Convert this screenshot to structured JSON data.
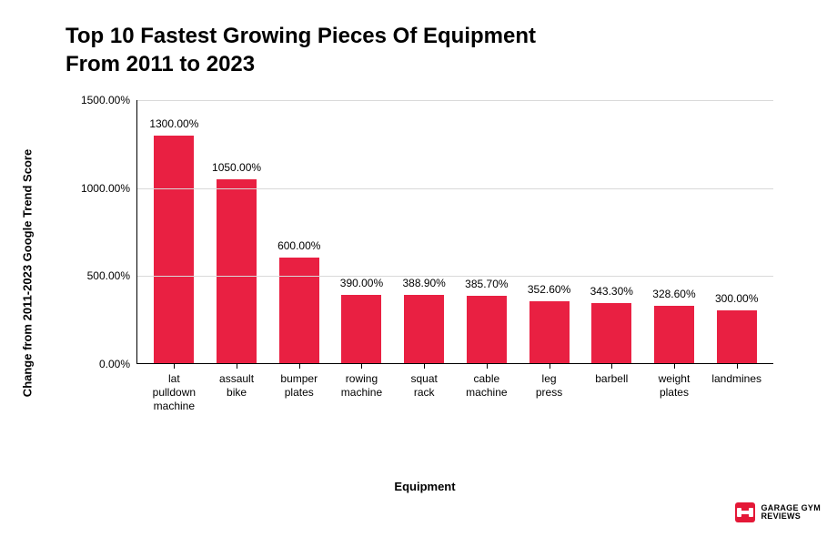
{
  "title": "Top 10 Fastest Growing Pieces Of Equipment\nFrom 2011 to 2023",
  "chart": {
    "type": "bar",
    "ylabel": "Change from 2011-2023 Google Trend Score",
    "xlabel": "Equipment",
    "ylim_max": 1500,
    "ylim_min": 0,
    "yticks": [
      {
        "value": 0,
        "label": "0.00%"
      },
      {
        "value": 500,
        "label": "500.00%"
      },
      {
        "value": 1000,
        "label": "1000.00%"
      },
      {
        "value": 1500,
        "label": "1500.00%"
      }
    ],
    "bar_color": "#e92042",
    "grid_color": "#d9d9d9",
    "axis_color": "#000000",
    "background_color": "#ffffff",
    "title_fontsize": 24,
    "axis_label_fontsize": 13,
    "tick_fontsize": 12,
    "datalabel_fontsize": 12,
    "bar_width_ratio": 0.64,
    "bars": [
      {
        "category": "lat pulldown\nmachine",
        "value": 1300.0,
        "label": "1300.00%"
      },
      {
        "category": "assault\nbike",
        "value": 1050.0,
        "label": "1050.00%"
      },
      {
        "category": "bumper\nplates",
        "value": 600.0,
        "label": "600.00%"
      },
      {
        "category": "rowing\nmachine",
        "value": 390.0,
        "label": "390.00%"
      },
      {
        "category": "squat rack",
        "value": 388.9,
        "label": "388.90%"
      },
      {
        "category": "cable\nmachine",
        "value": 385.7,
        "label": "385.70%"
      },
      {
        "category": "leg press",
        "value": 352.6,
        "label": "352.60%"
      },
      {
        "category": "barbell",
        "value": 343.3,
        "label": "343.30%"
      },
      {
        "category": "weight\nplates",
        "value": 328.6,
        "label": "328.60%"
      },
      {
        "category": "landmines",
        "value": 300.0,
        "label": "300.00%"
      }
    ]
  },
  "logo": {
    "line1": "GARAGE GYM",
    "line2": "REVIEWS",
    "icon_color": "#e41837"
  }
}
